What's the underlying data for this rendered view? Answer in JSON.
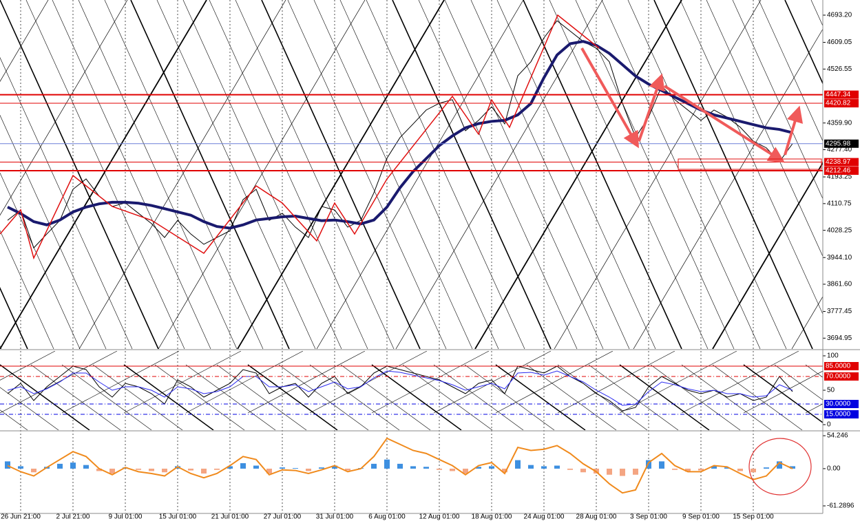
{
  "chart_data": [
    {
      "type": "line",
      "categories": [
        null,
        "26 Jun 21:00",
        null,
        null,
        null,
        "2 Jul 21:00",
        null,
        null,
        null,
        "9 Jul 01:00",
        null,
        null,
        null,
        "15 Jul 01:00",
        null,
        null,
        null,
        "21 Jul 01:00",
        null,
        null,
        null,
        "27 Jul 01:00",
        null,
        null,
        null,
        "31 Jul 01:00",
        null,
        null,
        null,
        "6 Aug 01:00",
        null,
        null,
        null,
        "12 Aug 01:00",
        null,
        null,
        null,
        "18 Aug 01:00",
        null,
        null,
        null,
        "24 Aug 01:00",
        null,
        null,
        null,
        "28 Aug 01:00",
        null,
        null,
        null,
        "3 Sep 01:00",
        null,
        null,
        null,
        "9 Sep 01:00",
        null,
        null,
        null,
        "15 Sep 01:00",
        null,
        null,
        null
      ],
      "series": [
        {
          "color": "#000000",
          "values": [
            4059,
            4091,
            3974,
            4017,
            4059,
            4155,
            4187,
            4134,
            4102,
            4113,
            4081,
            4049,
            4006,
            4059,
            4017,
            3985,
            4006,
            4027,
            4123,
            4155,
            4059,
            4081,
            4038,
            4006,
            4102,
            4091,
            4038,
            4059,
            4144,
            4251,
            4315,
            4357,
            4400,
            4421,
            4432,
            4336,
            4368,
            4410,
            4357,
            4506,
            4549,
            4623,
            4676,
            4644,
            4612,
            4591,
            4549,
            4421,
            4315,
            4378,
            4474,
            4432,
            4400,
            4368,
            4400,
            4378,
            4347,
            4304,
            4283,
            4240,
            4296
          ]
        },
        {
          "color": "#1a1a6e",
          "values": [
            4100,
            4080,
            4055,
            4045,
            4060,
            4085,
            4100,
            4110,
            4115,
            4115,
            4112,
            4105,
            4095,
            4085,
            4075,
            4055,
            4040,
            4035,
            4045,
            4060,
            4065,
            4070,
            4072,
            4065,
            4058,
            4060,
            4055,
            4048,
            4060,
            4100,
            4160,
            4210,
            4250,
            4290,
            4320,
            4345,
            4358,
            4365,
            4368,
            4385,
            4420,
            4500,
            4570,
            4605,
            4612,
            4600,
            4575,
            4540,
            4505,
            4480,
            4460,
            4440,
            4420,
            4400,
            4385,
            4375,
            4365,
            4355,
            4345,
            4340,
            4330
          ]
        }
      ],
      "ylim": [
        3661.6,
        4740
      ],
      "yticks": [
        {
          "value": 4693.2,
          "label": "4693.20"
        },
        4609.05,
        4526.55,
        {
          "value": 4359.9,
          "label": "4359.90"
        },
        {
          "value": 4277.4,
          "label": "4277.40"
        },
        4193.25,
        4110.75,
        4028.25,
        {
          "value": 3944.1,
          "label": "3944.10"
        },
        {
          "value": 3861.6,
          "label": "3861.60"
        },
        3777.45,
        3694.95
      ],
      "levels": [
        {
          "value": 4447.34,
          "color": "#e00000",
          "style": "thick"
        },
        {
          "value": 4420.82,
          "color": "#e00000",
          "style": "solid"
        },
        {
          "value": 4295.98,
          "color": "#000000",
          "line_color": "#6a7fd8",
          "style": "solid"
        },
        {
          "value": 4238.97,
          "color": "#e00000",
          "style": "solid"
        },
        {
          "value": 4212.46,
          "color": "#e00000",
          "style": "thick"
        }
      ]
    },
    {
      "type": "line",
      "series": [
        {
          "color": "#000000",
          "values": [
            45,
            60,
            35,
            55,
            70,
            85,
            80,
            55,
            40,
            60,
            55,
            45,
            30,
            65,
            55,
            40,
            50,
            60,
            80,
            75,
            45,
            55,
            60,
            40,
            60,
            70,
            45,
            55,
            75,
            85,
            80,
            75,
            70,
            65,
            55,
            45,
            60,
            65,
            45,
            85,
            80,
            75,
            85,
            70,
            60,
            45,
            35,
            20,
            25,
            55,
            70,
            60,
            50,
            45,
            50,
            40,
            45,
            35,
            40,
            70,
            48
          ]
        },
        {
          "color": "#2a2af0",
          "values": [
            50,
            55,
            45,
            52,
            62,
            75,
            75,
            62,
            50,
            55,
            55,
            50,
            40,
            55,
            52,
            45,
            48,
            55,
            70,
            70,
            55,
            55,
            58,
            48,
            55,
            62,
            52,
            55,
            68,
            78,
            76,
            72,
            68,
            64,
            58,
            50,
            55,
            60,
            52,
            75,
            76,
            72,
            78,
            70,
            62,
            50,
            40,
            28,
            30,
            48,
            62,
            58,
            52,
            48,
            50,
            45,
            45,
            40,
            42,
            58,
            50
          ]
        }
      ],
      "ylim": [
        -8,
        107
      ],
      "yticks": [
        0,
        50,
        100
      ],
      "levels": [
        {
          "value": 85,
          "label": "85.0000",
          "color": "#e00000",
          "style": "solid"
        },
        {
          "value": 70,
          "label": "70.0000",
          "color": "#e00000",
          "style": "dashdot"
        },
        {
          "value": 30,
          "label": "30.0000",
          "color": "#0000e0",
          "style": "dashdot"
        },
        {
          "value": 15,
          "label": "15.0000",
          "color": "#0000e0",
          "style": "dashdot"
        }
      ]
    },
    {
      "type": "bar",
      "series": [
        {
          "kind": "bar",
          "color": "#3d8fe0",
          "negative_color": "#f4a582",
          "values": [
            12,
            4,
            -6,
            3,
            8,
            10,
            6,
            -4,
            -8,
            2,
            -2,
            -4,
            -6,
            4,
            -3,
            -8,
            -2,
            4,
            9,
            5,
            -8,
            2,
            1,
            -4,
            2,
            5,
            -3,
            1,
            8,
            15,
            8,
            4,
            3,
            -2,
            -4,
            -8,
            3,
            4,
            -6,
            14,
            6,
            4,
            5,
            -2,
            -6,
            -8,
            -10,
            -12,
            -10,
            14,
            12,
            -2,
            -5,
            -3,
            4,
            2,
            -4,
            -6,
            2,
            12,
            4
          ]
        },
        {
          "kind": "line",
          "color": "#f08a1c",
          "values": [
            5,
            -5,
            -12,
            2,
            15,
            28,
            20,
            0,
            -10,
            2,
            -5,
            -8,
            -12,
            3,
            -8,
            -15,
            -8,
            5,
            20,
            15,
            -10,
            -2,
            -3,
            -8,
            -2,
            5,
            -5,
            0,
            20,
            50,
            40,
            30,
            25,
            15,
            5,
            -10,
            5,
            10,
            -8,
            35,
            30,
            32,
            38,
            25,
            8,
            -5,
            -25,
            -40,
            -35,
            10,
            25,
            5,
            -5,
            -5,
            5,
            3,
            -8,
            -18,
            -12,
            10,
            0
          ]
        }
      ],
      "ylim": [
        -72.6,
        60
      ],
      "yticks": [
        54.246,
        {
          "value": 0,
          "label": "0.00"
        },
        -61.2896
      ]
    }
  ]
}
